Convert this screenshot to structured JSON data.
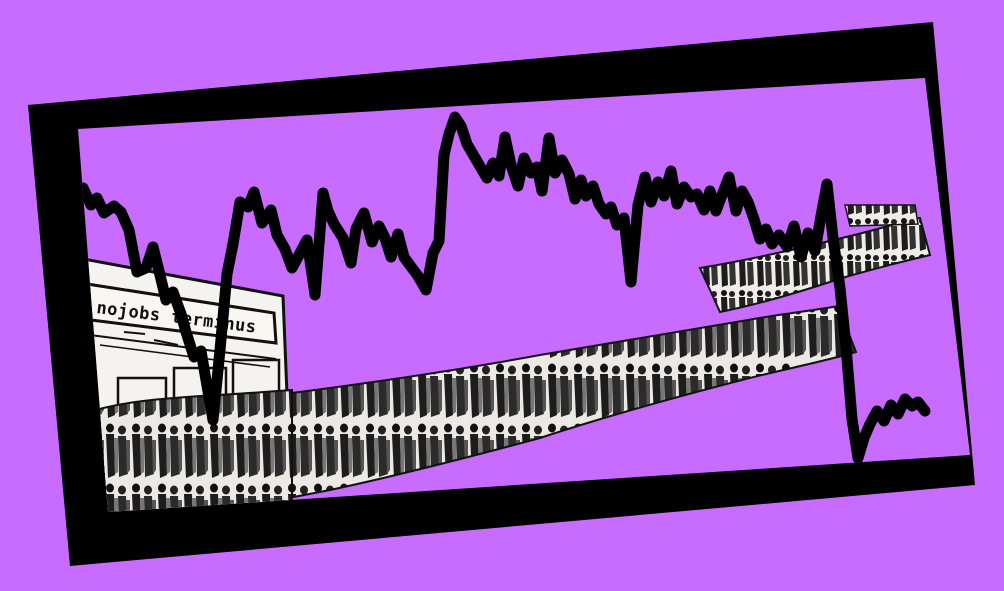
{
  "storefront": {
    "sign_text": "nojobs terminus"
  },
  "colors": {
    "background": "#c86bff",
    "frame": "#000000",
    "crowd_fill": "#f1efea",
    "crowd_ink": "#1a1a1a"
  }
}
